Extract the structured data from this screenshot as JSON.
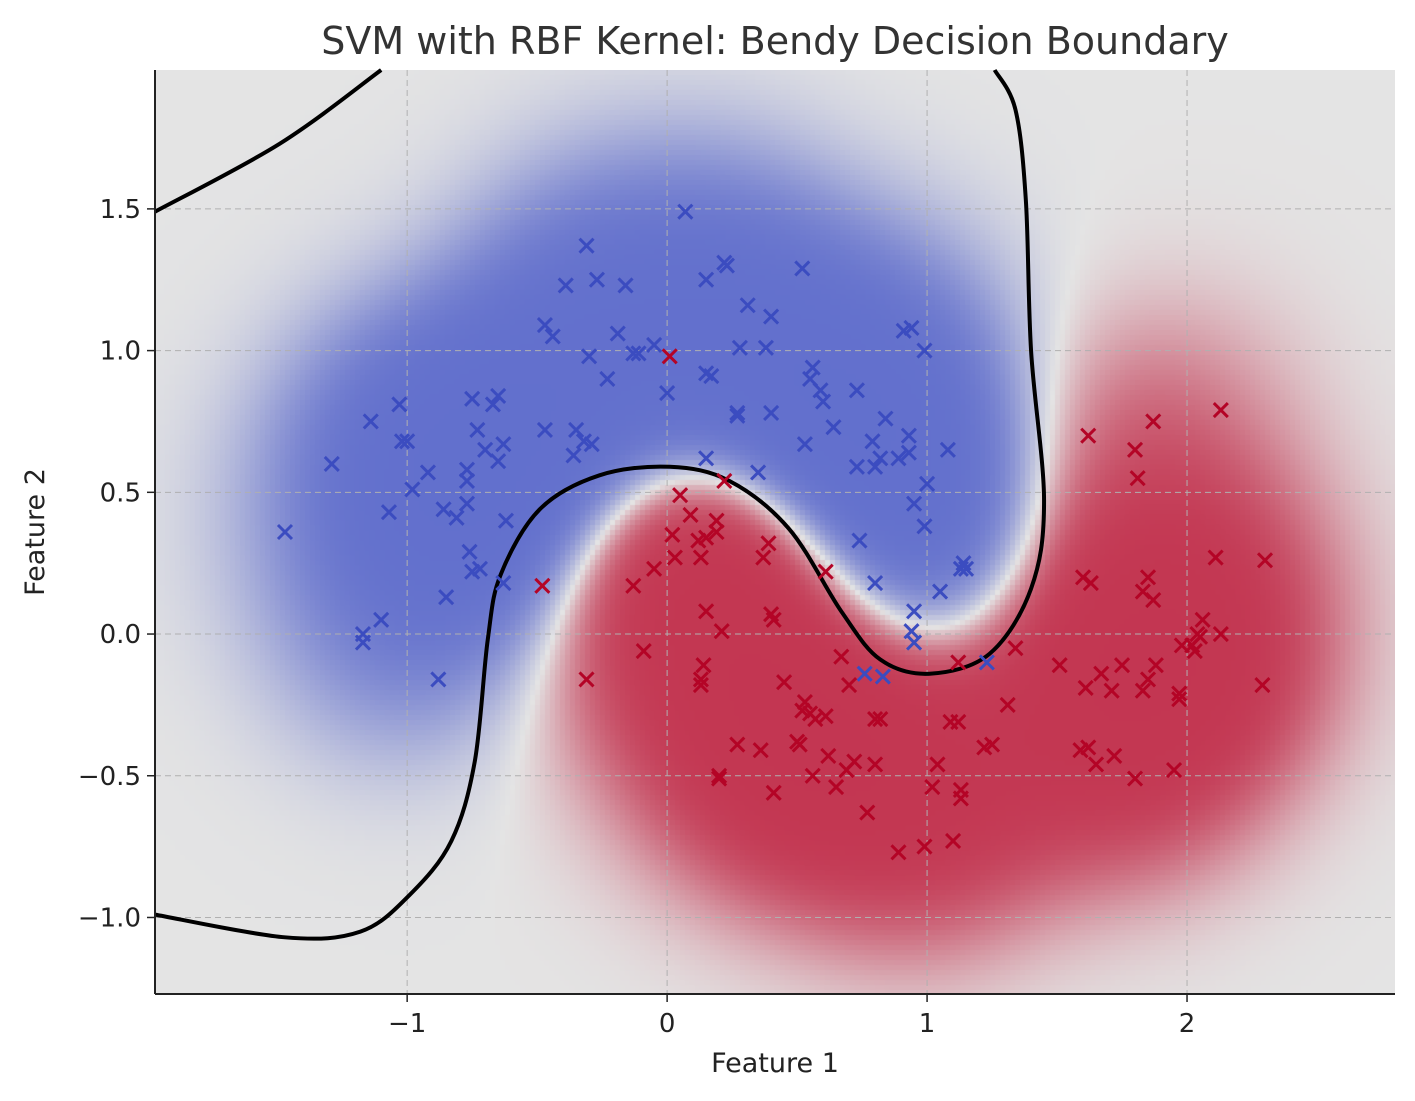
{
  "chart_data": {
    "type": "scatter",
    "title": "SVM with RBF Kernel: Bendy Decision Boundary",
    "xlabel": "Feature 1",
    "ylabel": "Feature 2",
    "xlim": [
      -1.97,
      2.8
    ],
    "ylim": [
      -1.27,
      1.99
    ],
    "xticks": [
      {
        "v": -1,
        "label": "−1"
      },
      {
        "v": 0,
        "label": "0"
      },
      {
        "v": 1,
        "label": "1"
      },
      {
        "v": 2,
        "label": "2"
      }
    ],
    "yticks": [
      {
        "v": -1,
        "label": "−1.0"
      },
      {
        "v": -0.5,
        "label": "−0.5"
      },
      {
        "v": 0,
        "label": "0.0"
      },
      {
        "v": 0.5,
        "label": "0.5"
      },
      {
        "v": 1,
        "label": "1.0"
      },
      {
        "v": 1.5,
        "label": "1.5"
      }
    ],
    "grid": true,
    "marker": "x",
    "colormap": "coolwarm",
    "series": [
      {
        "color": "#3b4cc0",
        "points": [
          [
            -1.47,
            0.36
          ],
          [
            -1.29,
            0.6
          ],
          [
            -1.14,
            0.75
          ],
          [
            -1.03,
            0.81
          ],
          [
            -1.02,
            0.68
          ],
          [
            -1.0,
            0.68
          ],
          [
            -1.07,
            0.43
          ],
          [
            -0.98,
            0.51
          ],
          [
            -0.92,
            0.57
          ],
          [
            -0.86,
            0.44
          ],
          [
            -0.81,
            0.41
          ],
          [
            -0.77,
            0.46
          ],
          [
            -0.77,
            0.58
          ],
          [
            -0.77,
            0.54
          ],
          [
            -0.73,
            0.72
          ],
          [
            -0.75,
            0.83
          ],
          [
            -0.67,
            0.81
          ],
          [
            -0.65,
            0.84
          ],
          [
            -0.7,
            0.65
          ],
          [
            -0.65,
            0.61
          ],
          [
            -0.63,
            0.67
          ],
          [
            -0.62,
            0.4
          ],
          [
            -0.76,
            0.29
          ],
          [
            -0.75,
            0.22
          ],
          [
            -0.72,
            0.23
          ],
          [
            -0.85,
            0.13
          ],
          [
            -0.63,
            0.18
          ],
          [
            -1.1,
            0.05
          ],
          [
            -1.17,
            0.0
          ],
          [
            -1.17,
            -0.03
          ],
          [
            -0.88,
            -0.16
          ],
          [
            -0.47,
            0.72
          ],
          [
            -0.47,
            1.09
          ],
          [
            -0.44,
            1.05
          ],
          [
            -0.35,
            0.72
          ],
          [
            -0.36,
            0.63
          ],
          [
            -0.32,
            0.68
          ],
          [
            -0.29,
            0.67
          ],
          [
            -0.39,
            1.23
          ],
          [
            -0.31,
            1.37
          ],
          [
            -0.27,
            1.25
          ],
          [
            -0.16,
            1.23
          ],
          [
            -0.3,
            0.98
          ],
          [
            -0.23,
            0.9
          ],
          [
            -0.19,
            1.06
          ],
          [
            -0.13,
            0.99
          ],
          [
            -0.11,
            0.99
          ],
          [
            -0.05,
            1.02
          ],
          [
            0.0,
            0.85
          ],
          [
            0.07,
            1.49
          ],
          [
            0.15,
            1.25
          ],
          [
            0.22,
            1.31
          ],
          [
            0.23,
            1.3
          ],
          [
            0.31,
            1.16
          ],
          [
            0.4,
            1.12
          ],
          [
            0.28,
            1.01
          ],
          [
            0.38,
            1.01
          ],
          [
            0.15,
            0.92
          ],
          [
            0.17,
            0.91
          ],
          [
            0.27,
            0.78
          ],
          [
            0.27,
            0.77
          ],
          [
            0.4,
            0.78
          ],
          [
            0.15,
            0.62
          ],
          [
            0.35,
            0.57
          ],
          [
            0.52,
            1.29
          ],
          [
            0.56,
            0.94
          ],
          [
            0.55,
            0.9
          ],
          [
            0.6,
            0.82
          ],
          [
            0.59,
            0.86
          ],
          [
            0.64,
            0.73
          ],
          [
            0.53,
            0.67
          ],
          [
            0.73,
            0.86
          ],
          [
            0.73,
            0.59
          ],
          [
            0.79,
            0.68
          ],
          [
            0.84,
            0.76
          ],
          [
            0.8,
            0.59
          ],
          [
            0.82,
            0.62
          ],
          [
            0.89,
            0.62
          ],
          [
            0.93,
            0.64
          ],
          [
            0.91,
            1.07
          ],
          [
            0.94,
            1.08
          ],
          [
            0.99,
            1.0
          ],
          [
            0.93,
            0.7
          ],
          [
            1.08,
            0.65
          ],
          [
            0.95,
            0.46
          ],
          [
            0.99,
            0.38
          ],
          [
            1.0,
            0.53
          ],
          [
            0.74,
            0.33
          ],
          [
            0.8,
            0.18
          ],
          [
            0.95,
            0.08
          ],
          [
            0.94,
            0.01
          ],
          [
            0.95,
            -0.03
          ],
          [
            1.05,
            0.15
          ],
          [
            1.14,
            0.25
          ],
          [
            1.15,
            0.23
          ],
          [
            1.13,
            0.23
          ],
          [
            0.76,
            -0.14
          ],
          [
            0.83,
            -0.15
          ],
          [
            1.23,
            -0.1
          ]
        ]
      },
      {
        "color": "#b40426",
        "points": [
          [
            0.01,
            0.98
          ],
          [
            -0.48,
            0.17
          ],
          [
            -0.31,
            -0.16
          ],
          [
            -0.13,
            0.17
          ],
          [
            -0.09,
            -0.06
          ],
          [
            -0.05,
            0.23
          ],
          [
            0.02,
            0.35
          ],
          [
            0.03,
            0.27
          ],
          [
            0.05,
            0.49
          ],
          [
            0.09,
            0.42
          ],
          [
            0.12,
            0.33
          ],
          [
            0.13,
            0.27
          ],
          [
            0.15,
            0.34
          ],
          [
            0.19,
            0.4
          ],
          [
            0.19,
            0.36
          ],
          [
            0.22,
            0.54
          ],
          [
            0.15,
            0.08
          ],
          [
            0.14,
            -0.11
          ],
          [
            0.13,
            -0.16
          ],
          [
            0.13,
            -0.18
          ],
          [
            0.21,
            0.01
          ],
          [
            0.2,
            -0.5
          ],
          [
            0.2,
            -0.51
          ],
          [
            0.27,
            -0.39
          ],
          [
            0.36,
            -0.41
          ],
          [
            0.37,
            0.27
          ],
          [
            0.39,
            0.32
          ],
          [
            0.4,
            0.07
          ],
          [
            0.41,
            0.05
          ],
          [
            0.45,
            -0.17
          ],
          [
            0.41,
            -0.56
          ],
          [
            0.5,
            -0.38
          ],
          [
            0.51,
            -0.39
          ],
          [
            0.52,
            -0.27
          ],
          [
            0.53,
            -0.24
          ],
          [
            0.55,
            -0.28
          ],
          [
            0.57,
            -0.3
          ],
          [
            0.61,
            -0.29
          ],
          [
            0.56,
            -0.5
          ],
          [
            0.61,
            0.22
          ],
          [
            0.62,
            -0.43
          ],
          [
            0.65,
            -0.54
          ],
          [
            0.67,
            -0.08
          ],
          [
            0.69,
            -0.48
          ],
          [
            0.7,
            -0.18
          ],
          [
            0.72,
            -0.45
          ],
          [
            0.77,
            -0.63
          ],
          [
            0.8,
            -0.3
          ],
          [
            0.82,
            -0.3
          ],
          [
            0.8,
            -0.46
          ],
          [
            0.89,
            -0.77
          ],
          [
            0.99,
            -0.75
          ],
          [
            1.02,
            -0.54
          ],
          [
            1.04,
            -0.46
          ],
          [
            1.09,
            -0.31
          ],
          [
            1.12,
            -0.31
          ],
          [
            1.1,
            -0.73
          ],
          [
            1.12,
            -0.1
          ],
          [
            1.13,
            -0.55
          ],
          [
            1.13,
            -0.58
          ],
          [
            1.22,
            -0.4
          ],
          [
            1.25,
            -0.39
          ],
          [
            1.31,
            -0.25
          ],
          [
            1.34,
            -0.05
          ],
          [
            1.51,
            -0.11
          ],
          [
            1.62,
            0.7
          ],
          [
            1.6,
            0.2
          ],
          [
            1.63,
            0.18
          ],
          [
            1.61,
            -0.19
          ],
          [
            1.59,
            -0.41
          ],
          [
            1.62,
            -0.4
          ],
          [
            1.65,
            -0.46
          ],
          [
            1.67,
            -0.14
          ],
          [
            1.71,
            -0.2
          ],
          [
            1.72,
            -0.43
          ],
          [
            1.75,
            -0.11
          ],
          [
            1.8,
            0.65
          ],
          [
            1.81,
            0.55
          ],
          [
            1.87,
            0.75
          ],
          [
            1.8,
            -0.51
          ],
          [
            1.83,
            -0.2
          ],
          [
            1.83,
            0.15
          ],
          [
            1.85,
            0.2
          ],
          [
            1.87,
            0.12
          ],
          [
            1.85,
            -0.16
          ],
          [
            1.88,
            -0.11
          ],
          [
            1.95,
            -0.48
          ],
          [
            1.97,
            -0.21
          ],
          [
            1.97,
            -0.23
          ],
          [
            1.98,
            -0.04
          ],
          [
            2.02,
            -0.04
          ],
          [
            2.04,
            0.0
          ],
          [
            2.03,
            -0.06
          ],
          [
            2.06,
            0.05
          ],
          [
            2.05,
            -0.01
          ],
          [
            2.11,
            0.27
          ],
          [
            2.13,
            0.0
          ],
          [
            2.13,
            0.79
          ],
          [
            2.3,
            0.26
          ],
          [
            2.29,
            -0.18
          ]
        ]
      }
    ],
    "decision_boundary": [
      [
        [
          -1.97,
          1.49
        ],
        [
          -1.49,
          1.73
        ],
        [
          -1.1,
          1.99
        ]
      ],
      [
        [
          -1.97,
          -0.99
        ],
        [
          -1.47,
          -1.07
        ],
        [
          -1.18,
          -1.05
        ],
        [
          -0.99,
          -0.92
        ],
        [
          -0.83,
          -0.73
        ],
        [
          -0.74,
          -0.45
        ],
        [
          -0.69,
          -0.02
        ],
        [
          -0.64,
          0.21
        ],
        [
          -0.49,
          0.44
        ],
        [
          -0.26,
          0.56
        ],
        [
          0.01,
          0.59
        ],
        [
          0.24,
          0.54
        ],
        [
          0.47,
          0.37
        ],
        [
          0.67,
          0.08
        ],
        [
          0.82,
          -0.09
        ],
        [
          1.01,
          -0.14
        ],
        [
          1.24,
          -0.07
        ],
        [
          1.4,
          0.16
        ],
        [
          1.45,
          0.47
        ],
        [
          1.4,
          1.0
        ],
        [
          1.38,
          1.53
        ],
        [
          1.34,
          1.85
        ],
        [
          1.26,
          1.99
        ]
      ]
    ]
  }
}
